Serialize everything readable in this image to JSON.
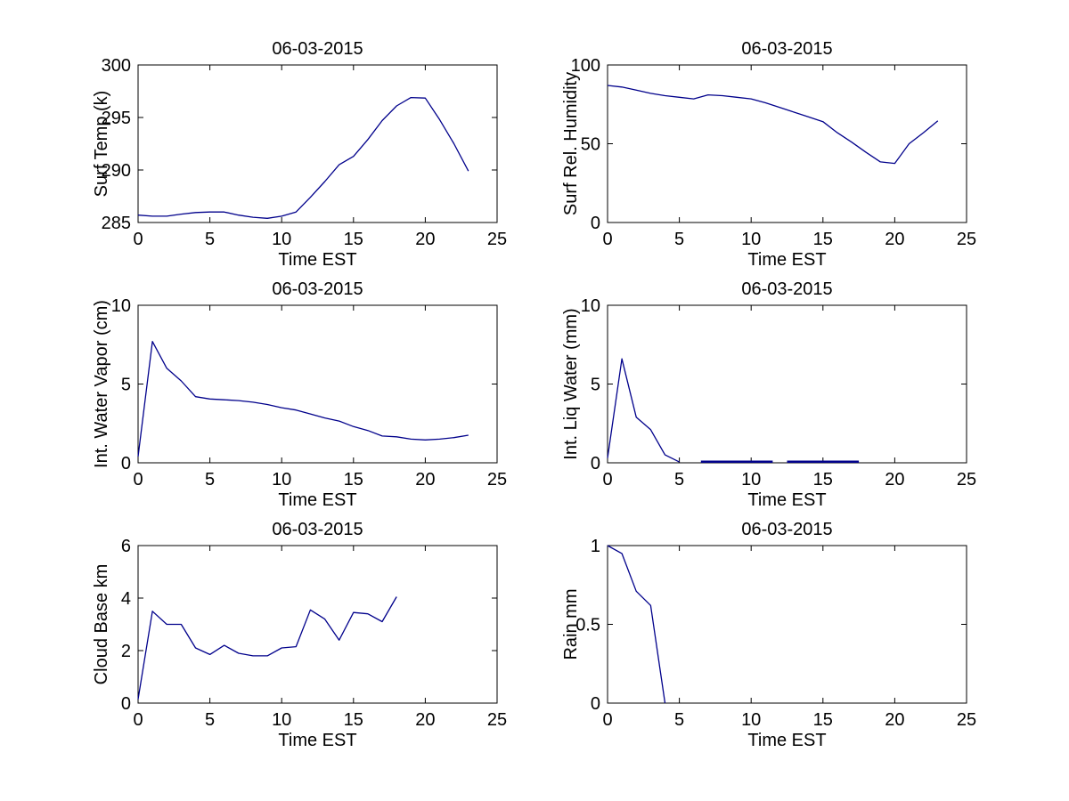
{
  "figure": {
    "background": "#ffffff",
    "axis_color": "#000000",
    "line_color": "#00008B"
  },
  "chart_data": [
    {
      "type": "line",
      "title": "06-03-2015",
      "xlabel": "Time EST",
      "ylabel": "Surf Temp (k)",
      "xlim": [
        0,
        25
      ],
      "ylim": [
        285,
        300
      ],
      "xticks": [
        0,
        5,
        10,
        15,
        20,
        25
      ],
      "yticks": [
        285,
        290,
        295,
        300
      ],
      "grid": false,
      "series": [
        {
          "x": [
            0,
            1,
            2,
            3,
            4,
            5,
            6,
            7,
            8,
            9,
            10,
            11,
            12,
            13,
            14,
            15,
            16,
            17,
            18,
            19,
            20,
            21,
            22,
            23
          ],
          "y": [
            285.7,
            285.6,
            285.6,
            285.8,
            285.95,
            286.0,
            286.0,
            285.7,
            285.5,
            285.4,
            285.6,
            286.0,
            287.4,
            288.9,
            290.5,
            291.3,
            292.9,
            294.7,
            296.1,
            296.9,
            296.85,
            294.8,
            292.5,
            289.9
          ]
        }
      ]
    },
    {
      "type": "line",
      "title": "06-03-2015",
      "xlabel": "Time EST",
      "ylabel": "Surf Rel. Humidity",
      "xlim": [
        0,
        25
      ],
      "ylim": [
        0,
        100
      ],
      "xticks": [
        0,
        5,
        10,
        15,
        20,
        25
      ],
      "yticks": [
        0,
        50,
        100
      ],
      "grid": false,
      "series": [
        {
          "x": [
            0,
            1,
            2,
            3,
            4,
            5,
            6,
            7,
            8,
            9,
            10,
            11,
            12,
            13,
            14,
            15,
            16,
            17,
            18,
            19,
            20,
            21,
            22,
            23
          ],
          "y": [
            87,
            86,
            84,
            82,
            80.5,
            79.5,
            78.5,
            81,
            80.5,
            79.5,
            78.5,
            76,
            73,
            70,
            67,
            64,
            57,
            51,
            44.5,
            38.5,
            37.5,
            50,
            57,
            64.5
          ]
        }
      ]
    },
    {
      "type": "line",
      "title": "06-03-2015",
      "xlabel": "Time EST",
      "ylabel": "Int. Water Vapor (cm)",
      "xlim": [
        0,
        25
      ],
      "ylim": [
        0,
        10
      ],
      "xticks": [
        0,
        5,
        10,
        15,
        20,
        25
      ],
      "yticks": [
        0,
        5,
        10
      ],
      "grid": false,
      "series": [
        {
          "x": [
            0,
            1,
            2,
            3,
            4,
            5,
            6,
            7,
            8,
            9,
            10,
            11,
            12,
            13,
            14,
            15,
            16,
            17,
            18,
            19,
            20,
            21,
            22,
            23
          ],
          "y": [
            0.4,
            7.7,
            6.0,
            5.2,
            4.2,
            4.05,
            4.0,
            3.95,
            3.85,
            3.7,
            3.5,
            3.35,
            3.1,
            2.85,
            2.65,
            2.3,
            2.05,
            1.7,
            1.65,
            1.5,
            1.45,
            1.5,
            1.6,
            1.75
          ]
        }
      ]
    },
    {
      "type": "line",
      "title": "06-03-2015",
      "xlabel": "Time EST",
      "ylabel": "Int. Liq Water (mm)",
      "xlim": [
        0,
        25
      ],
      "ylim": [
        0,
        10
      ],
      "xticks": [
        0,
        5,
        10,
        15,
        20,
        25
      ],
      "yticks": [
        0,
        5,
        10
      ],
      "grid": false,
      "series": [
        {
          "x": [
            0,
            1,
            2,
            3,
            4,
            5
          ],
          "y": [
            0.3,
            6.6,
            2.9,
            2.1,
            0.5,
            0.05
          ]
        },
        {
          "x": [
            6.5,
            11.5
          ],
          "y": [
            0.07,
            0.07
          ],
          "stroke_width": 2.5
        },
        {
          "x": [
            12.5,
            17.5
          ],
          "y": [
            0.07,
            0.07
          ],
          "stroke_width": 2.5
        }
      ]
    },
    {
      "type": "line",
      "title": "06-03-2015",
      "xlabel": "Time EST",
      "ylabel": "Cloud Base km",
      "xlim": [
        0,
        25
      ],
      "ylim": [
        0,
        6
      ],
      "xticks": [
        0,
        5,
        10,
        15,
        20,
        25
      ],
      "yticks": [
        0,
        2,
        4,
        6
      ],
      "grid": false,
      "series": [
        {
          "x": [
            0,
            1,
            2,
            3,
            4,
            5,
            6,
            7,
            8,
            9,
            10,
            11,
            12,
            13,
            14,
            15,
            16,
            17,
            18
          ],
          "y": [
            0.15,
            3.5,
            3.0,
            3.0,
            2.1,
            1.85,
            2.2,
            1.9,
            1.8,
            1.8,
            2.1,
            2.15,
            3.55,
            3.2,
            2.4,
            3.45,
            3.4,
            3.1,
            4.05
          ]
        }
      ]
    },
    {
      "type": "line",
      "title": "06-03-2015",
      "xlabel": "Time EST",
      "ylabel": "Rain mm",
      "xlim": [
        0,
        25
      ],
      "ylim": [
        0,
        1
      ],
      "xticks": [
        0,
        5,
        10,
        15,
        20,
        25
      ],
      "yticks": [
        0,
        0.5,
        1
      ],
      "grid": false,
      "series": [
        {
          "x": [
            0,
            1,
            2,
            3,
            4
          ],
          "y": [
            1.0,
            0.95,
            0.71,
            0.62,
            0.0
          ]
        }
      ]
    }
  ]
}
